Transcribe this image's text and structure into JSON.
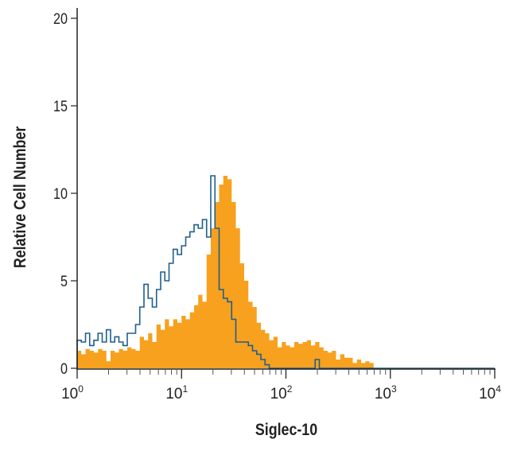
{
  "chart_data": {
    "type": "histogram",
    "title": "",
    "xlabel": "Siglec-10",
    "ylabel": "Relative Cell Number",
    "x_scale": "log",
    "xlim": [
      1,
      10000
    ],
    "ylim": [
      0,
      20
    ],
    "grid": false,
    "x_ticks": [
      {
        "base": "10",
        "exp": "0"
      },
      {
        "base": "10",
        "exp": "1"
      },
      {
        "base": "10",
        "exp": "2"
      },
      {
        "base": "10",
        "exp": "3"
      },
      {
        "base": "10",
        "exp": "4"
      }
    ],
    "y_ticks": [
      "0",
      "5",
      "10",
      "15",
      "20"
    ],
    "bin_log10_width": 0.04,
    "series": [
      {
        "style": "filled",
        "color": "#f7a11e",
        "values": [
          1.0,
          0.8,
          1.1,
          1.0,
          0.9,
          1.1,
          1.0,
          0.4,
          1.0,
          0.9,
          1.1,
          1.0,
          1.2,
          1.1,
          1.0,
          1.8,
          1.6,
          2.0,
          1.5,
          2.5,
          2.2,
          2.8,
          2.4,
          2.8,
          2.6,
          3.0,
          2.8,
          3.2,
          3.6,
          4.2,
          3.8,
          6.5,
          8.0,
          9.5,
          10.5,
          11.0,
          10.8,
          9.5,
          8.0,
          6.0,
          5.0,
          3.8,
          3.5,
          2.6,
          2.2,
          2.0,
          1.6,
          1.8,
          1.2,
          1.5,
          1.3,
          1.2,
          1.5,
          1.4,
          1.5,
          1.6,
          1.3,
          1.5,
          1.2,
          1.0,
          0.9,
          1.0,
          0.5,
          0.8,
          0.6,
          0.6,
          0.3,
          0.5,
          0.3,
          0.4,
          0.3,
          0,
          0,
          0,
          0,
          0,
          0,
          0,
          0,
          0,
          0,
          0,
          0,
          0,
          0,
          0,
          0,
          0,
          0,
          0,
          0,
          0,
          0,
          0,
          0,
          0,
          0,
          0,
          0,
          0
        ]
      },
      {
        "style": "outline",
        "color": "#1f5f8b",
        "values": [
          1.6,
          1.5,
          2.0,
          1.3,
          1.6,
          2.0,
          1.5,
          2.2,
          1.5,
          1.8,
          1.5,
          1.3,
          2.0,
          2.0,
          2.5,
          3.5,
          4.8,
          4.0,
          3.5,
          4.5,
          5.5,
          5.0,
          6.0,
          6.8,
          6.5,
          7.0,
          7.5,
          7.8,
          8.2,
          8.0,
          8.5,
          7.5,
          11.0,
          8.0,
          4.5,
          4.0,
          3.8,
          2.8,
          1.5,
          1.5,
          1.5,
          1.3,
          1.0,
          0.8,
          0.5,
          0.2,
          0,
          0,
          0,
          0,
          0,
          0,
          0,
          0,
          0,
          0,
          0,
          0.5,
          0,
          0,
          0,
          0,
          0,
          0,
          0,
          0,
          0,
          0,
          0,
          0,
          0,
          0,
          0,
          0,
          0,
          0,
          0,
          0,
          0,
          0,
          0,
          0,
          0,
          0,
          0,
          0,
          0,
          0,
          0,
          0,
          0,
          0,
          0,
          0,
          0,
          0,
          0,
          0,
          0,
          0
        ]
      }
    ]
  }
}
